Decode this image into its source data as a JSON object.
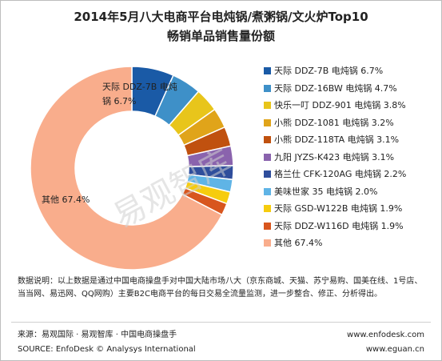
{
  "title_line1": "2014年5月八大电商平台电炖锅/煮粥锅/文火炉Top10",
  "title_line2": "畅销单品销售量份额",
  "chart_data": {
    "type": "pie",
    "slices": [
      {
        "label": "天际 DDZ-7B 电炖锅 6.7%",
        "value": 6.7,
        "color": "#1a5aa6"
      },
      {
        "label": "天际 DDZ-16BW 电炖锅 4.7%",
        "value": 4.7,
        "color": "#3e90c8"
      },
      {
        "label": "快乐一叮 DDZ-901 电炖锅 3.8%",
        "value": 3.8,
        "color": "#e8c51b"
      },
      {
        "label": "小熊 DDZ-1081 电炖锅 3.2%",
        "value": 3.2,
        "color": "#e0a41a"
      },
      {
        "label": "小熊 DDZ-118TA 电炖锅 3.1%",
        "value": 3.1,
        "color": "#c0510f"
      },
      {
        "label": "九阳 JYZS-K423 电炖锅 3.1%",
        "value": 3.1,
        "color": "#8a63ad"
      },
      {
        "label": "格兰仕 CFK-120AG 电炖锅 2.2%",
        "value": 2.2,
        "color": "#2f4e9c"
      },
      {
        "label": "美味世家 35 电炖锅 2.0%",
        "value": 2.0,
        "color": "#5fb4e6"
      },
      {
        "label": "天际 GSD-W122B 电炖锅 1.9%",
        "value": 1.9,
        "color": "#f6cc0e"
      },
      {
        "label": "天际 DDZ-W116D 电炖锅 1.9%",
        "value": 1.9,
        "color": "#d8561e"
      },
      {
        "label": "其他 67.4%",
        "value": 67.4,
        "color": "#f9ad8c"
      }
    ],
    "pie_labels": [
      {
        "lines": [
          "天际 DDZ-7B 电炖",
          "锅 6.7%"
        ],
        "slice": 0
      },
      {
        "lines": [
          "其他 67.4%"
        ],
        "slice": 10
      }
    ],
    "watermark": "易观智库"
  },
  "note": "数据说明：以上数据是通过中国电商操盘手对中国大陆市场八大（京东商城、天猫、苏宁易购、国美在线、1号店、当当网、易迅网、QQ网购）主要B2C电商平台的每日交易全流量监测，进一步整合、修正、分析得出。",
  "source_cn": "来源：易观国际 · 易观智库 · 中国电商操盘手",
  "source_en": "SOURCE: EnfoDesk © Analysys International",
  "url1": "www.enfodesk.com",
  "url2": "www.eguan.cn"
}
